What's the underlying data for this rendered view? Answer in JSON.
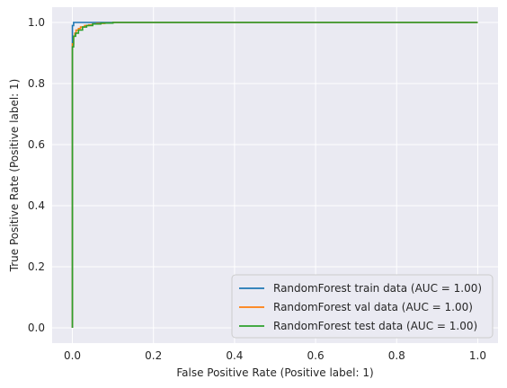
{
  "chart_data": {
    "type": "line",
    "title": "",
    "xlabel": "False Positive Rate (Positive label: 1)",
    "ylabel": "True Positive Rate (Positive label: 1)",
    "xlim": [
      -0.05,
      1.05
    ],
    "ylim": [
      -0.05,
      1.05
    ],
    "grid": true,
    "legend_position": "bottom-right",
    "xticks": [
      0.0,
      0.2,
      0.4,
      0.6,
      0.8,
      1.0
    ],
    "yticks": [
      0.0,
      0.2,
      0.4,
      0.6,
      0.8,
      1.0
    ],
    "xtick_labels": [
      "0.0",
      "0.2",
      "0.4",
      "0.6",
      "0.8",
      "1.0"
    ],
    "ytick_labels": [
      "0.0",
      "0.2",
      "0.4",
      "0.6",
      "0.8",
      "1.0"
    ],
    "series": [
      {
        "name": "RandomForest train data (AUC = 1.00)",
        "color": "#1f77b4",
        "x": [
          0.0,
          0.0,
          0.0,
          0.003,
          1.0
        ],
        "y": [
          0.0,
          0.96,
          0.99,
          1.0,
          1.0
        ]
      },
      {
        "name": "RandomForest val data (AUC = 1.00)",
        "color": "#ff7f0e",
        "x": [
          0.0,
          0.0,
          0.003,
          0.006,
          0.009,
          0.015,
          0.02,
          0.03,
          0.04,
          0.05,
          0.06,
          0.08,
          0.1,
          1.0
        ],
        "y": [
          0.0,
          0.93,
          0.955,
          0.965,
          0.975,
          0.98,
          0.985,
          0.99,
          0.992,
          0.995,
          0.997,
          0.998,
          1.0,
          1.0
        ]
      },
      {
        "name": "RandomForest test data (AUC = 1.00)",
        "color": "#2ca02c",
        "x": [
          0.0,
          0.0,
          0.003,
          0.008,
          0.015,
          0.025,
          0.035,
          0.05,
          0.07,
          0.1,
          1.0
        ],
        "y": [
          0.0,
          0.92,
          0.955,
          0.965,
          0.975,
          0.985,
          0.99,
          0.995,
          0.998,
          1.0,
          1.0
        ]
      }
    ]
  },
  "style": {
    "plot_background": "#eaeaf2",
    "grid_color": "#ffffff",
    "legend_background": "#eaeaf2",
    "legend_border": "#cccccc",
    "text_color": "#262626"
  }
}
